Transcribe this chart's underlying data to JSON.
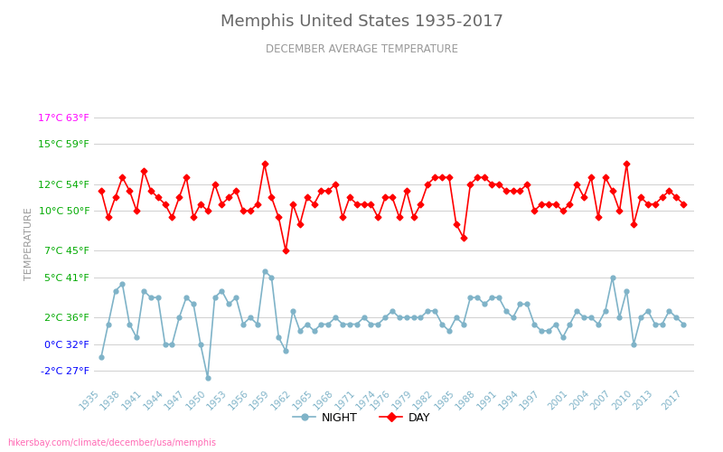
{
  "title": "Memphis United States 1935-2017",
  "subtitle": "DECEMBER AVERAGE TEMPERATURE",
  "xlabel_bottom": "hikersbay.com/climate/december/usa/memphis",
  "ylabel": "TEMPERATURE",
  "years": [
    1935,
    1936,
    1937,
    1938,
    1939,
    1940,
    1941,
    1942,
    1943,
    1944,
    1945,
    1946,
    1947,
    1948,
    1949,
    1950,
    1951,
    1952,
    1953,
    1954,
    1955,
    1956,
    1957,
    1958,
    1959,
    1960,
    1961,
    1962,
    1963,
    1964,
    1965,
    1966,
    1967,
    1968,
    1969,
    1970,
    1971,
    1972,
    1973,
    1974,
    1975,
    1976,
    1977,
    1978,
    1979,
    1980,
    1981,
    1982,
    1983,
    1984,
    1985,
    1986,
    1987,
    1988,
    1989,
    1990,
    1991,
    1992,
    1993,
    1994,
    1995,
    1996,
    1997,
    1998,
    1999,
    2000,
    2001,
    2002,
    2003,
    2004,
    2005,
    2006,
    2007,
    2008,
    2009,
    2010,
    2011,
    2012,
    2013,
    2014,
    2015,
    2016,
    2017
  ],
  "day_temps": [
    11.5,
    9.5,
    11.0,
    12.5,
    11.5,
    10.0,
    13.0,
    11.5,
    11.0,
    10.5,
    9.5,
    11.0,
    12.5,
    9.5,
    10.5,
    10.0,
    12.0,
    10.5,
    11.0,
    11.5,
    10.0,
    10.0,
    10.5,
    13.5,
    11.0,
    9.5,
    7.0,
    10.5,
    9.0,
    11.0,
    10.5,
    11.5,
    11.5,
    12.0,
    9.5,
    11.0,
    10.5,
    10.5,
    10.5,
    9.5,
    11.0,
    11.0,
    9.5,
    11.5,
    9.5,
    10.5,
    12.0,
    12.5,
    12.5,
    12.5,
    9.0,
    8.0,
    12.0,
    12.5,
    12.5,
    12.0,
    12.0,
    11.5,
    11.5,
    11.5,
    12.0,
    10.0,
    10.5,
    10.5,
    10.5,
    10.0,
    10.5,
    12.0,
    11.0,
    12.5,
    9.5,
    12.5,
    11.5,
    10.0,
    13.5,
    9.0,
    11.0,
    10.5,
    10.5,
    11.0,
    11.5,
    11.0,
    10.5
  ],
  "night_temps": [
    -1.0,
    1.5,
    4.0,
    4.5,
    1.5,
    0.5,
    4.0,
    3.5,
    3.5,
    0.0,
    0.0,
    2.0,
    3.5,
    3.0,
    0.0,
    -2.5,
    3.5,
    4.0,
    3.0,
    3.5,
    1.5,
    2.0,
    1.5,
    5.5,
    5.0,
    0.5,
    -0.5,
    2.5,
    1.0,
    1.5,
    1.0,
    1.5,
    1.5,
    2.0,
    1.5,
    1.5,
    1.5,
    2.0,
    1.5,
    1.5,
    2.0,
    2.5,
    2.0,
    2.0,
    2.0,
    2.0,
    2.5,
    2.5,
    1.5,
    1.0,
    2.0,
    1.5,
    3.5,
    3.5,
    3.0,
    3.5,
    3.5,
    2.5,
    2.0,
    3.0,
    3.0,
    1.5,
    1.0,
    1.0,
    1.5,
    0.5,
    1.5,
    2.5,
    2.0,
    2.0,
    1.5,
    2.5,
    5.0,
    2.0,
    4.0,
    0.0,
    2.0,
    2.5,
    1.5,
    1.5,
    2.5,
    2.0,
    1.5
  ],
  "ylim": [
    -3,
    18
  ],
  "yticks_c": [
    -2,
    0,
    2,
    5,
    7,
    10,
    12,
    15,
    17
  ],
  "yticks_label": [
    "-2°C 27°F",
    "0°C 32°F",
    "2°C 36°F",
    "5°C 41°F",
    "7°C 45°F",
    "10°C 50°F",
    "12°C 54°F",
    "15°C 59°F",
    "17°C 63°F"
  ],
  "ytick_colors": [
    "#0000ff",
    "#0000ff",
    "#00aa00",
    "#00aa00",
    "#00aa00",
    "#00aa00",
    "#00aa00",
    "#00aa00",
    "#ff00ff"
  ],
  "xtick_years": [
    1935,
    1938,
    1941,
    1944,
    1947,
    1950,
    1953,
    1956,
    1959,
    1962,
    1965,
    1968,
    1971,
    1974,
    1976,
    1979,
    1982,
    1985,
    1988,
    1991,
    1994,
    1997,
    2001,
    2004,
    2007,
    2010,
    2013,
    2017
  ],
  "day_color": "#ff0000",
  "night_color": "#7fb3c8",
  "background_color": "#ffffff",
  "grid_color": "#d0d0d0",
  "title_color": "#666666",
  "subtitle_color": "#999999",
  "ylabel_color": "#999999",
  "watermark_color": "#ff69b4",
  "legend_night": "NIGHT",
  "legend_day": "DAY"
}
